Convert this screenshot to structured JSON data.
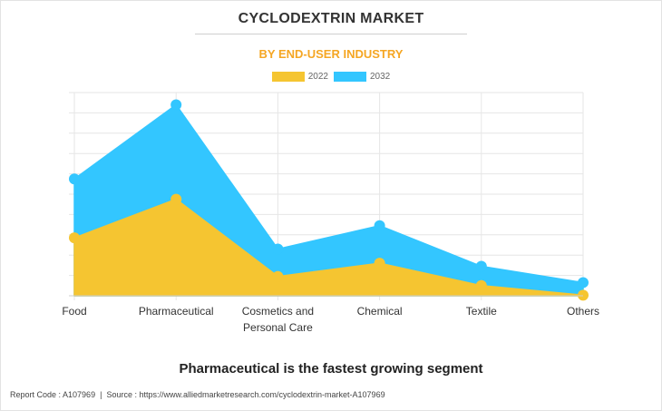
{
  "header": {
    "title": "CYCLODEXTRIN MARKET",
    "subtitle": "BY END-USER INDUSTRY"
  },
  "caption": "Pharmaceutical is the fastest growing segment",
  "footer": {
    "report_code": "Report Code : A107969",
    "separator": "|",
    "source": "Source : https://www.alliedmarketresearch.com/cyclodextrin-market-A107969"
  },
  "colors": {
    "series_2022": "#f5c531",
    "series_2032": "#33c6ff",
    "subtitle": "#f5a623",
    "grid": "#e6e6e6"
  },
  "chart_data": {
    "type": "area",
    "categories": [
      "Food",
      "Pharmaceutical",
      "Cosmetics and Personal Care",
      "Chemical",
      "Textile",
      "Others"
    ],
    "category_lines": [
      [
        "Food"
      ],
      [
        "Pharmaceutical"
      ],
      [
        "Cosmetics and",
        "Personal Care"
      ],
      [
        "Chemical"
      ],
      [
        "Textile"
      ],
      [
        "Others"
      ]
    ],
    "series": [
      {
        "name": "2022",
        "values": [
          28.5,
          47.5,
          9.5,
          16,
          5,
          0.3
        ]
      },
      {
        "name": "2032",
        "values": [
          57.5,
          94,
          23,
          34.5,
          14.5,
          6.5
        ]
      }
    ],
    "ylim": [
      0,
      100
    ],
    "y_ticks_labeled": false,
    "grid": true,
    "legend_position": "top-center",
    "title": "",
    "xlabel": "",
    "ylabel": ""
  }
}
